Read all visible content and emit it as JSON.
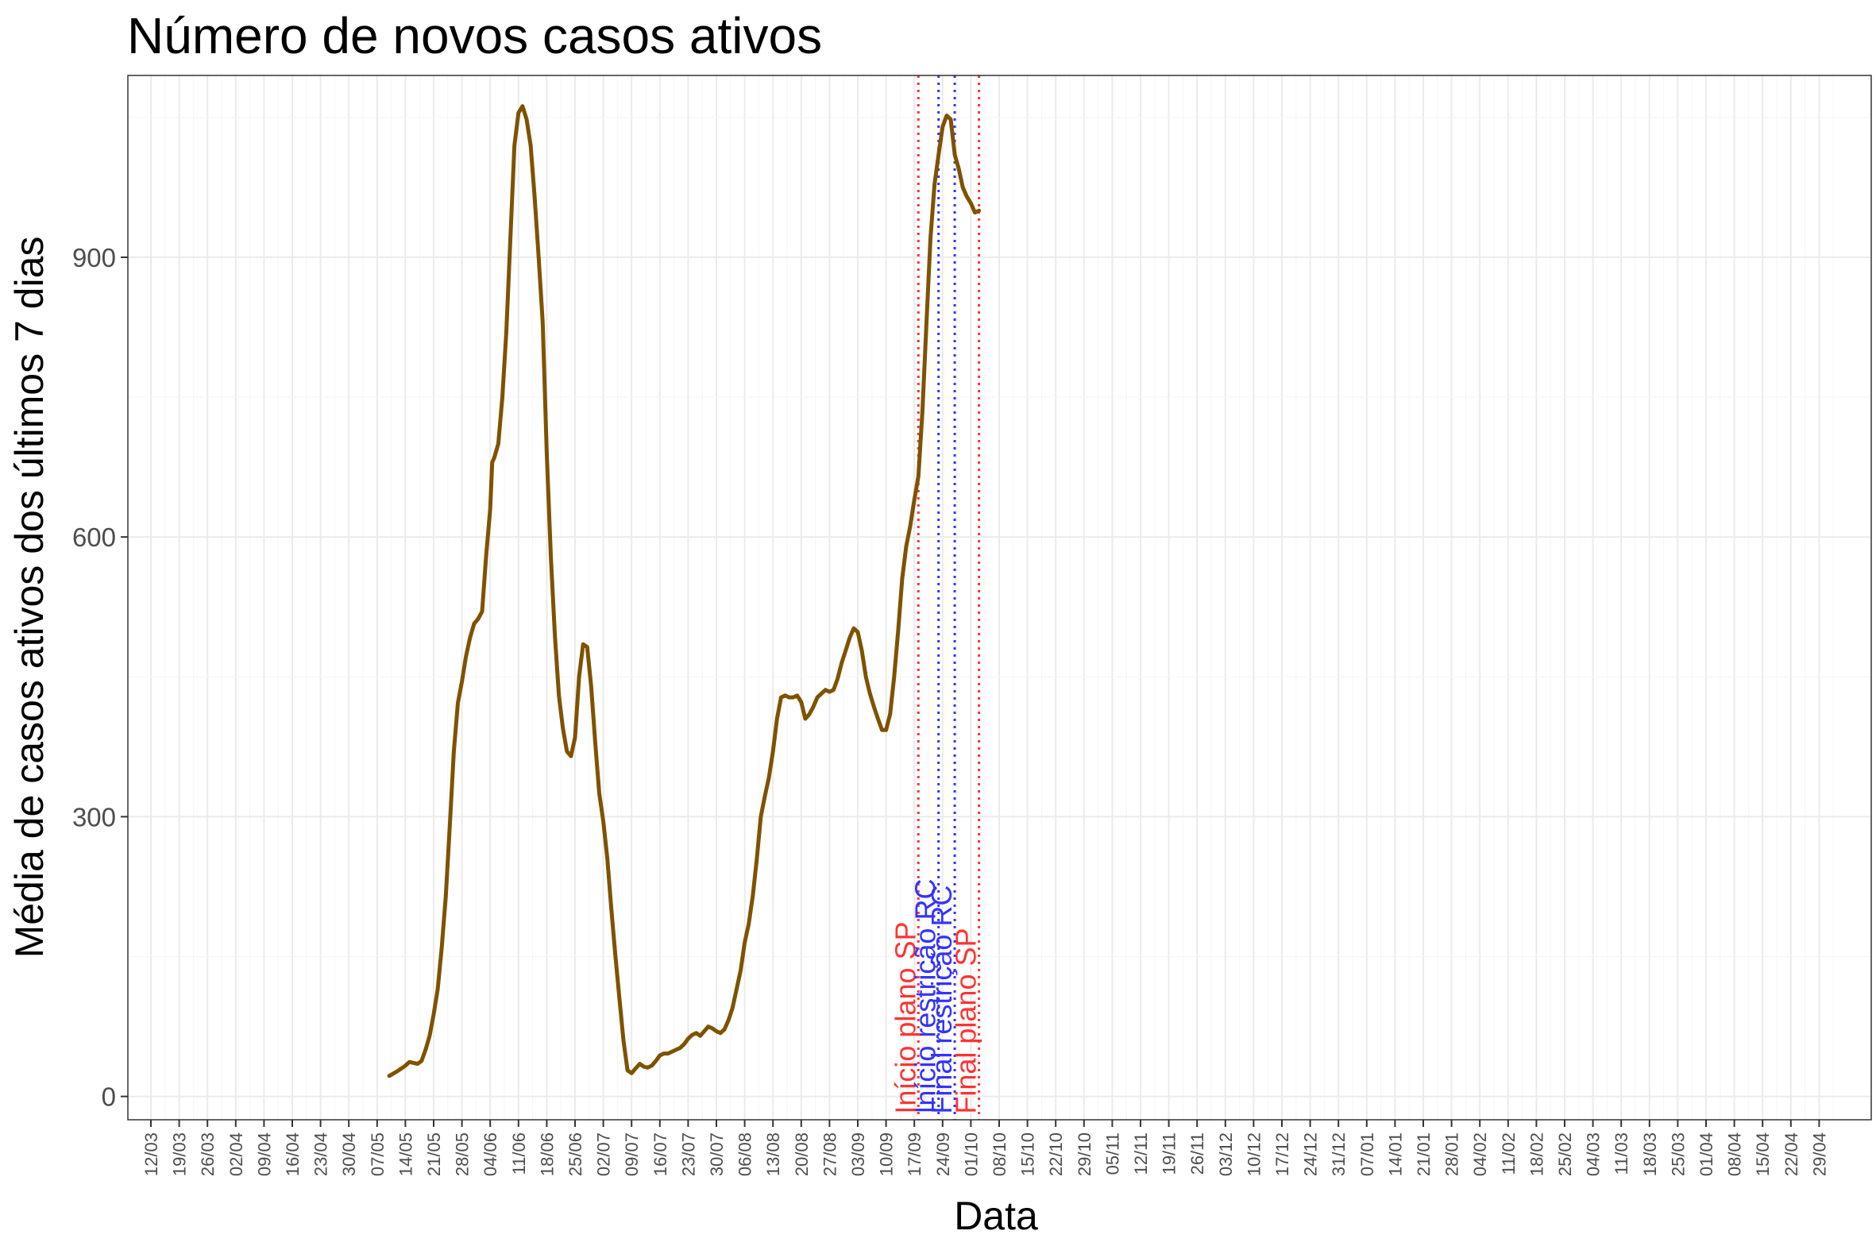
{
  "chart_data": {
    "type": "line",
    "title": "Número de novos casos ativos",
    "xlabel": "Data",
    "ylabel": "Média de casos ativos dos últimos 7 dias",
    "x_tick_labels": [
      "12/03",
      "19/03",
      "26/03",
      "02/04",
      "09/04",
      "16/04",
      "23/04",
      "30/04",
      "07/05",
      "14/05",
      "21/05",
      "28/05",
      "04/06",
      "11/06",
      "18/06",
      "25/06",
      "02/07",
      "09/07",
      "16/07",
      "23/07",
      "30/07",
      "06/08",
      "13/08",
      "20/08",
      "27/08",
      "03/09",
      "10/09",
      "17/09",
      "24/09",
      "01/10",
      "08/10",
      "15/10",
      "22/10",
      "29/10",
      "05/11",
      "12/11",
      "19/11",
      "26/11",
      "03/12",
      "10/12",
      "17/12",
      "24/12",
      "31/12",
      "07/01",
      "14/01",
      "21/01",
      "28/01",
      "04/02",
      "11/02",
      "18/02",
      "25/02",
      "04/03",
      "11/03",
      "18/03",
      "25/03",
      "01/04",
      "08/04",
      "15/04",
      "22/04",
      "29/04"
    ],
    "y_ticks": [
      0,
      300,
      600,
      900
    ],
    "ylim": [
      -25,
      1095
    ],
    "grid": true,
    "line_color": "#7f5200",
    "series": [
      {
        "points": [
          [
            59,
            22
          ],
          [
            61,
            27
          ],
          [
            63,
            33
          ],
          [
            64,
            37
          ],
          [
            65,
            36
          ],
          [
            66,
            35
          ],
          [
            67,
            38
          ],
          [
            68,
            50
          ],
          [
            69,
            65
          ],
          [
            70,
            88
          ],
          [
            71,
            115
          ],
          [
            72,
            160
          ],
          [
            73,
            215
          ],
          [
            74,
            290
          ],
          [
            75,
            370
          ],
          [
            76,
            422
          ],
          [
            77,
            445
          ],
          [
            78,
            472
          ],
          [
            79,
            492
          ],
          [
            80,
            507
          ],
          [
            81,
            512
          ],
          [
            82,
            520
          ],
          [
            83,
            580
          ],
          [
            84,
            630
          ],
          [
            84.5,
            680
          ],
          [
            85,
            685
          ],
          [
            86,
            700
          ],
          [
            87,
            750
          ],
          [
            88,
            820
          ],
          [
            89,
            920
          ],
          [
            90,
            1020
          ],
          [
            91,
            1055
          ],
          [
            92,
            1062
          ],
          [
            93,
            1048
          ],
          [
            94,
            1020
          ],
          [
            95,
            965
          ],
          [
            96,
            900
          ],
          [
            97,
            830
          ],
          [
            98,
            690
          ],
          [
            99,
            580
          ],
          [
            100,
            495
          ],
          [
            101,
            430
          ],
          [
            102,
            395
          ],
          [
            103,
            370
          ],
          [
            104,
            365
          ],
          [
            105,
            385
          ],
          [
            106,
            450
          ],
          [
            107,
            485
          ],
          [
            108,
            482
          ],
          [
            109,
            440
          ],
          [
            110,
            380
          ],
          [
            111,
            325
          ],
          [
            112,
            295
          ],
          [
            113,
            255
          ],
          [
            114,
            200
          ],
          [
            115,
            150
          ],
          [
            116,
            105
          ],
          [
            117,
            60
          ],
          [
            118,
            28
          ],
          [
            119,
            25
          ],
          [
            120,
            30
          ],
          [
            121,
            35
          ],
          [
            122,
            32
          ],
          [
            123,
            31
          ],
          [
            124,
            33
          ],
          [
            125,
            38
          ],
          [
            126,
            44
          ],
          [
            127,
            46
          ],
          [
            128,
            46
          ],
          [
            129,
            48
          ],
          [
            130,
            50
          ],
          [
            131,
            52
          ],
          [
            132,
            56
          ],
          [
            133,
            62
          ],
          [
            134,
            66
          ],
          [
            135,
            68
          ],
          [
            136,
            65
          ],
          [
            137,
            70
          ],
          [
            138,
            75
          ],
          [
            139,
            73
          ],
          [
            140,
            70
          ],
          [
            141,
            68
          ],
          [
            142,
            72
          ],
          [
            143,
            82
          ],
          [
            144,
            95
          ],
          [
            145,
            115
          ],
          [
            146,
            135
          ],
          [
            147,
            165
          ],
          [
            148,
            185
          ],
          [
            149,
            215
          ],
          [
            150,
            255
          ],
          [
            151,
            300
          ],
          [
            152,
            322
          ],
          [
            153,
            342
          ],
          [
            154,
            370
          ],
          [
            155,
            405
          ],
          [
            156,
            428
          ],
          [
            157,
            430
          ],
          [
            158,
            428
          ],
          [
            159,
            428
          ],
          [
            160,
            430
          ],
          [
            161,
            423
          ],
          [
            162,
            405
          ],
          [
            163,
            410
          ],
          [
            164,
            418
          ],
          [
            165,
            428
          ],
          [
            166,
            432
          ],
          [
            167,
            436
          ],
          [
            168,
            434
          ],
          [
            169,
            436
          ],
          [
            170,
            448
          ],
          [
            171,
            465
          ],
          [
            172,
            478
          ],
          [
            173,
            492
          ],
          [
            174,
            502
          ],
          [
            175,
            498
          ],
          [
            176,
            478
          ],
          [
            177,
            450
          ],
          [
            178,
            432
          ],
          [
            179,
            418
          ],
          [
            180,
            405
          ],
          [
            181,
            393
          ],
          [
            182,
            393
          ],
          [
            183,
            410
          ],
          [
            184,
            450
          ],
          [
            185,
            500
          ],
          [
            186,
            555
          ],
          [
            187,
            590
          ],
          [
            188,
            612
          ],
          [
            189,
            640
          ],
          [
            190,
            665
          ],
          [
            191,
            735
          ],
          [
            192,
            830
          ],
          [
            193,
            920
          ],
          [
            194,
            978
          ],
          [
            195,
            1010
          ],
          [
            196,
            1040
          ],
          [
            197,
            1052
          ],
          [
            198,
            1048
          ],
          [
            199,
            1010
          ],
          [
            200,
            995
          ],
          [
            201,
            975
          ],
          [
            202,
            965
          ],
          [
            203,
            958
          ],
          [
            204,
            948
          ],
          [
            205,
            950
          ]
        ]
      }
    ],
    "vertical_lines": [
      {
        "x": 190,
        "label": "Início plano SP",
        "color": "#ff3333"
      },
      {
        "x": 195,
        "label": "Início restrição RC",
        "color": "#3333ff"
      },
      {
        "x": 199,
        "label": "Final restrição RC",
        "color": "#3333ff"
      },
      {
        "x": 205,
        "label": "Final plano SP",
        "color": "#ff3333"
      }
    ]
  }
}
